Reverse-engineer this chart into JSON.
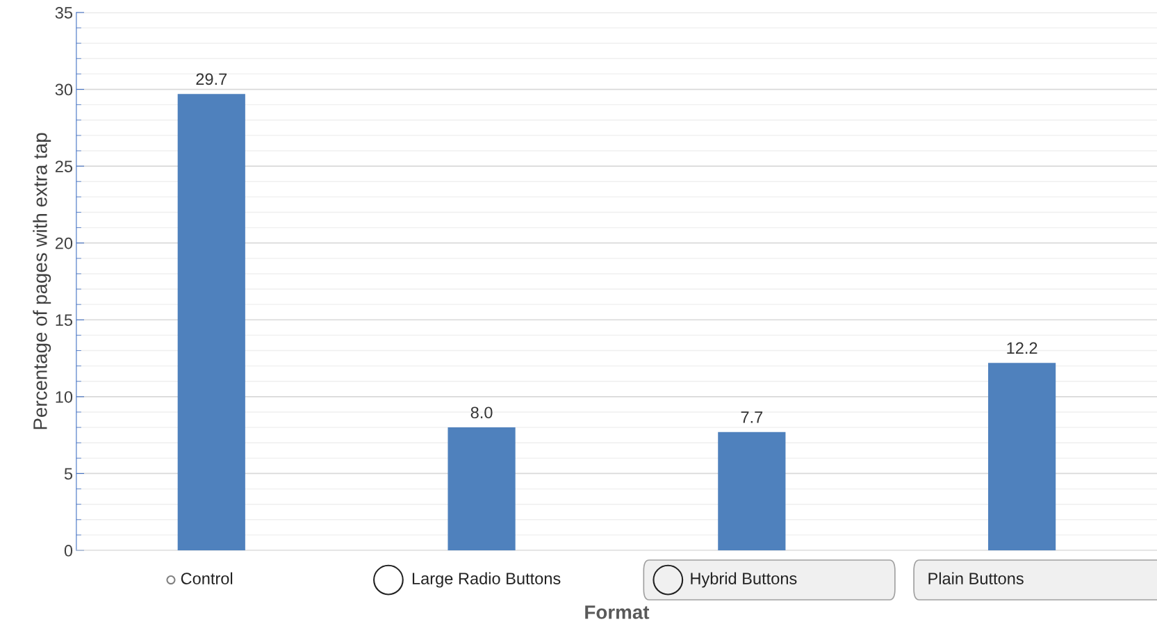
{
  "chart_data": {
    "type": "bar",
    "xlabel": "Format",
    "ylabel": "Percentage of pages with extra tap",
    "categories": [
      "Control",
      "Large Radio Buttons",
      "Hybrid Buttons",
      "Plain Buttons"
    ],
    "values": [
      29.7,
      8.0,
      7.7,
      12.2
    ],
    "value_labels": [
      "29.7",
      "8.0",
      "7.7",
      "12.2"
    ],
    "color": "#4f81bd",
    "ylim": [
      0,
      35
    ],
    "yticks": [
      0,
      5,
      10,
      15,
      20,
      25,
      30,
      35
    ],
    "grid": "y"
  }
}
